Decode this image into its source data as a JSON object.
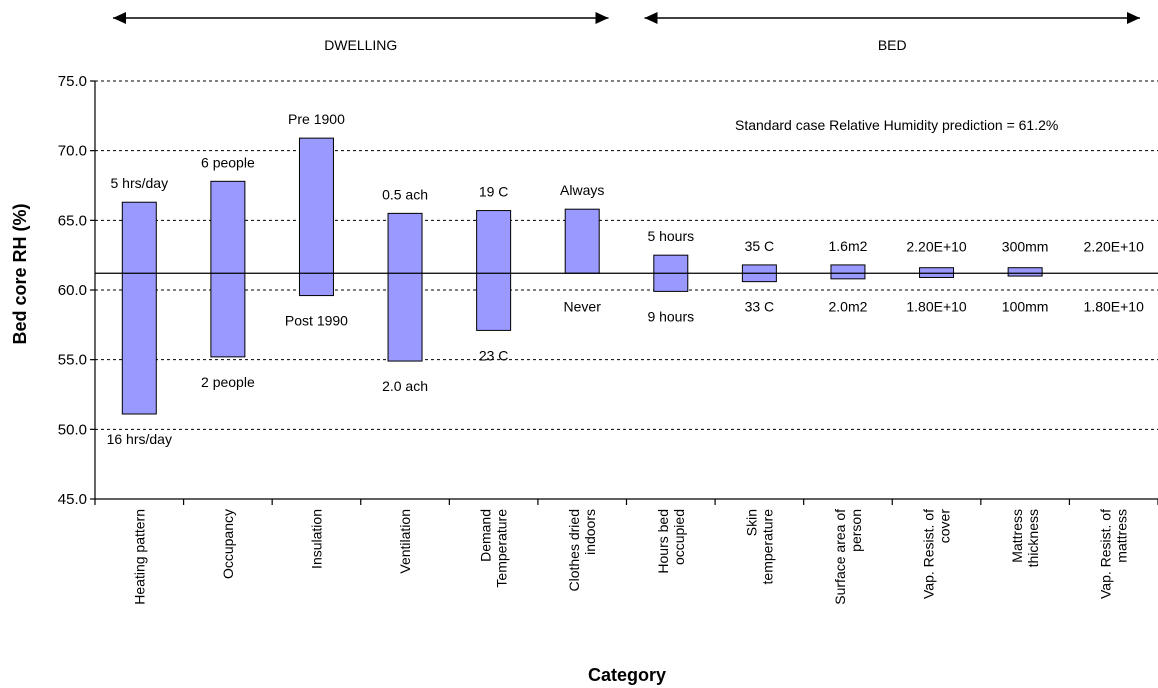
{
  "chart_data": {
    "type": "bar",
    "subtype": "tornado",
    "xlabel": "Category",
    "ylabel": "Bed core RH (%)",
    "ylim": [
      45.0,
      75.0
    ],
    "ytick_step": 5,
    "yticks": [
      "45.0",
      "50.0",
      "55.0",
      "60.0",
      "65.0",
      "70.0",
      "75.0"
    ],
    "grid": true,
    "baseline": 61.2,
    "annotation": "Standard case Relative Humidity prediction = 61.2%",
    "sections": [
      {
        "label": "DWELLING",
        "start": 0,
        "end": 6
      },
      {
        "label": "BED",
        "start": 6,
        "end": 12
      }
    ],
    "categories": [
      {
        "name": "Heating pattern",
        "lines": [
          "Heating pattern"
        ],
        "high": 66.3,
        "low": 51.1,
        "high_label": "5 hrs/day",
        "low_label": "16 hrs/day"
      },
      {
        "name": "Occupancy",
        "lines": [
          "Occupancy"
        ],
        "high": 67.8,
        "low": 55.2,
        "high_label": "6 people",
        "low_label": "2 people"
      },
      {
        "name": "Insulation",
        "lines": [
          "Insulation"
        ],
        "high": 70.9,
        "low": 59.6,
        "high_label": "Pre 1900",
        "low_label": "Post 1990"
      },
      {
        "name": "Ventilation",
        "lines": [
          "Ventilation"
        ],
        "high": 65.5,
        "low": 54.9,
        "high_label": "0.5 ach",
        "low_label": "2.0 ach"
      },
      {
        "name": "Demand Temperature",
        "lines": [
          "Demand",
          "Temperature"
        ],
        "high": 65.7,
        "low": 57.1,
        "high_label": "19 C",
        "low_label": "23 C"
      },
      {
        "name": "Clothes dried indoors",
        "lines": [
          "Clothes dried",
          "indoors"
        ],
        "high": 65.8,
        "low": 61.2,
        "high_label": "Always",
        "low_label": "Never"
      },
      {
        "name": "Hours bed occupied",
        "lines": [
          "Hours bed",
          "occupied"
        ],
        "high": 62.5,
        "low": 59.9,
        "high_label": "5 hours",
        "low_label": "9 hours"
      },
      {
        "name": "Skin temperature",
        "lines": [
          "Skin",
          "temperature"
        ],
        "high": 61.8,
        "low": 60.6,
        "high_label": "35 C",
        "low_label": "33 C"
      },
      {
        "name": "Surface area of person",
        "lines": [
          "Surface area of",
          "person"
        ],
        "high": 61.8,
        "low": 60.8,
        "high_label": "1.6m2",
        "low_label": "2.0m2"
      },
      {
        "name": "Vap. Resist. of cover",
        "lines": [
          "Vap. Resist. of",
          "cover"
        ],
        "high": 61.6,
        "low": 60.9,
        "high_label": "2.20E+10",
        "low_label": "1.80E+10"
      },
      {
        "name": "Mattress thickness",
        "lines": [
          "Mattress",
          "thickness"
        ],
        "high": 61.6,
        "low": 61.0,
        "high_label": "300mm",
        "low_label": "100mm"
      },
      {
        "name": "Vap. Resist. of mattress",
        "lines": [
          "Vap. Resist. of",
          "mattress"
        ],
        "high": 61.2,
        "low": 61.2,
        "high_label": "2.20E+10",
        "low_label": "1.80E+10"
      }
    ]
  }
}
